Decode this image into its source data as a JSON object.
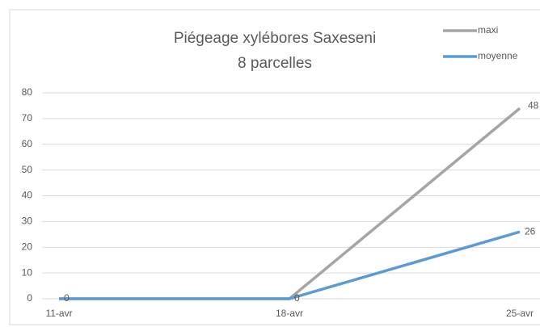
{
  "chart_data": {
    "type": "line",
    "title": [
      "Piégeage xylébores Saxeseni",
      "8 parcelles"
    ],
    "categories": [
      "11-avr",
      "18-avr",
      "25-avr"
    ],
    "series": [
      {
        "name": "maxi",
        "color": "#a5a5a5",
        "values": [
          0,
          0,
          74
        ]
      },
      {
        "name": "moyenne",
        "color": "#5b9bd5",
        "values": [
          0,
          0,
          26
        ],
        "data_labels": true
      }
    ],
    "annotation": "48",
    "ylim": [
      0,
      80
    ],
    "yticks": [
      0,
      10,
      20,
      30,
      40,
      50,
      60,
      70,
      80
    ],
    "grid": true,
    "legend": "top-right"
  }
}
